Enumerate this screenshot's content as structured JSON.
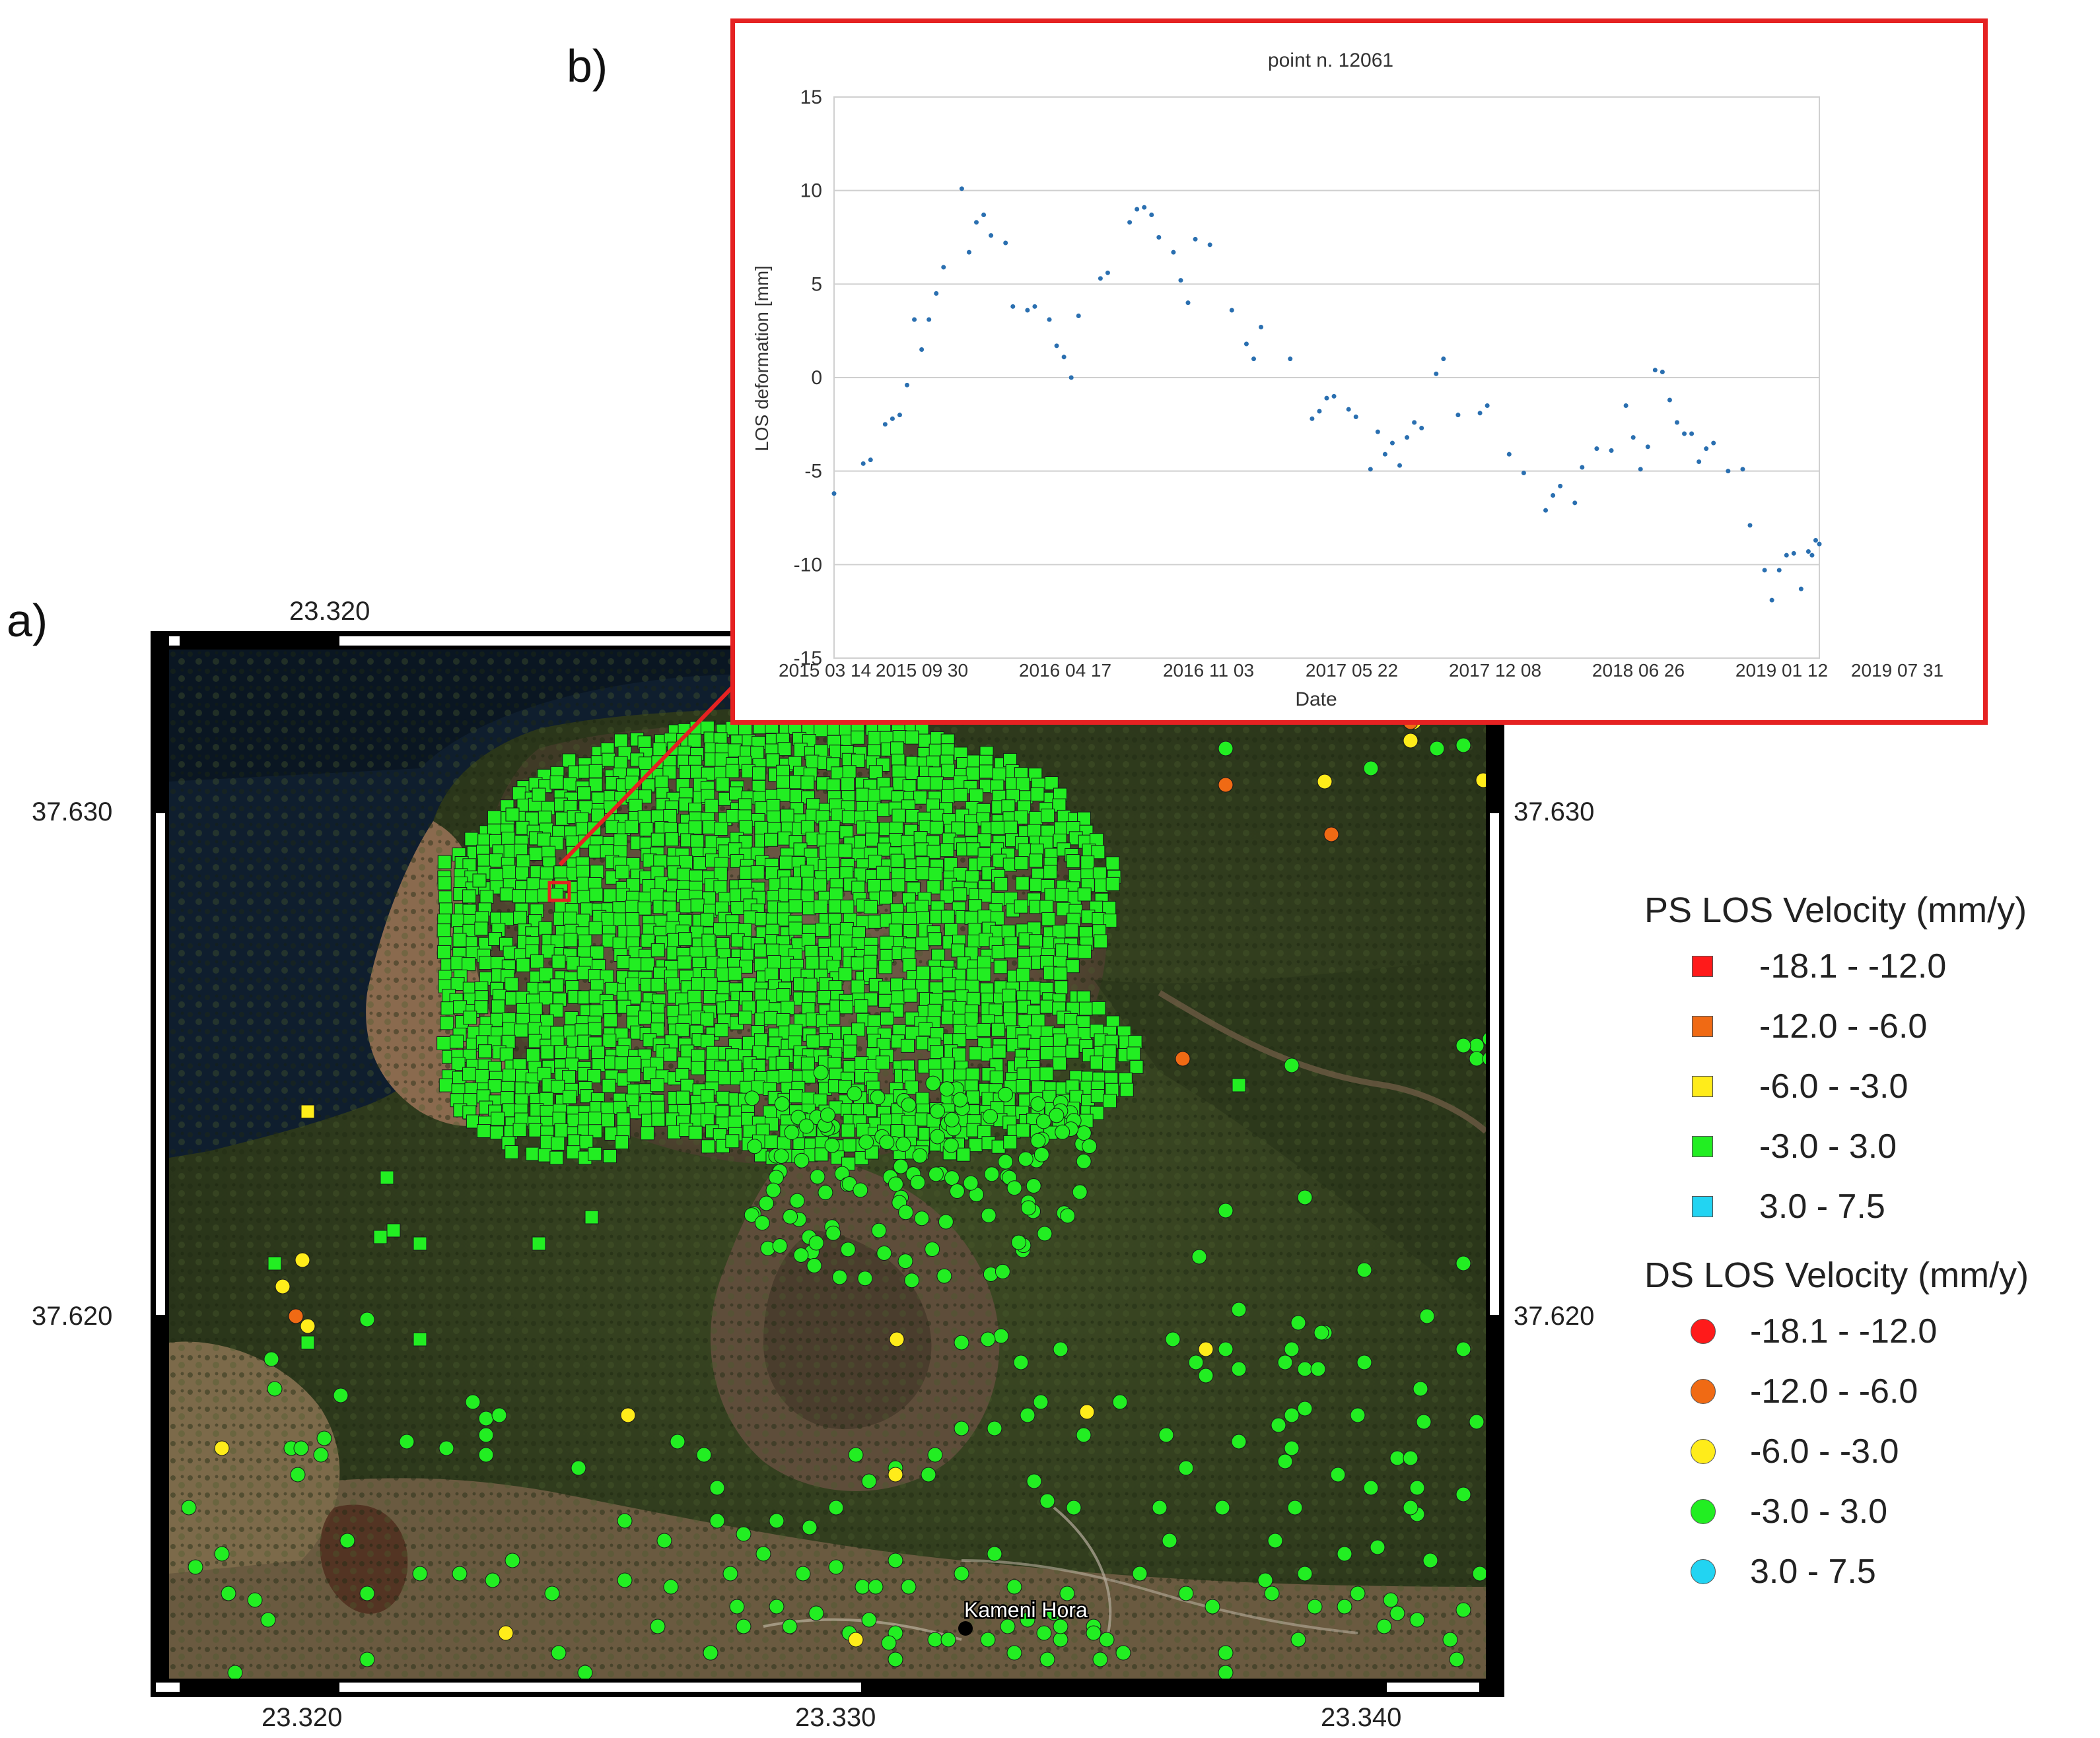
{
  "panels": {
    "a": "a)",
    "b": "b)"
  },
  "map": {
    "lon_ticks": [
      "23.320",
      "23.330",
      "23.340"
    ],
    "lat_ticks": [
      "37.630",
      "37.620"
    ],
    "place_label": "Kameni Hora",
    "highlight_box": "selected-point"
  },
  "colors": {
    "class_-18.1_-12.0": "#ff1a1a",
    "class_-12.0_-6.0": "#f06a14",
    "class_-6.0_-3.0": "#ffec1a",
    "class_-3.0_3.0": "#22ee22",
    "class_3.0_7.5": "#22d4f2",
    "inset_border": "#e52222",
    "point_color": "#2a6fb0"
  },
  "legend": {
    "ps_title": "PS LOS Velocity (mm/y)",
    "ds_title": "DS LOS Velocity (mm/y)",
    "classes": [
      {
        "label": "-18.1 - -12.0",
        "color": "#ff1a1a"
      },
      {
        "label": "-12.0 - -6.0",
        "color": "#f06a14"
      },
      {
        "label": "-6.0 - -3.0",
        "color": "#ffec1a"
      },
      {
        "label": "-3.0 - 3.0",
        "color": "#22ee22"
      },
      {
        "label": "3.0 - 7.5",
        "color": "#22d4f2"
      }
    ]
  },
  "chart_data": {
    "type": "scatter",
    "title": "point n. 12061",
    "xlabel": "Date",
    "ylabel": "LOS deformation [mm]",
    "ylim": [
      -15,
      15
    ],
    "yticks": [
      15,
      10,
      5,
      0,
      -5,
      -10,
      -15
    ],
    "xlim": [
      "2015-03-14",
      "2019-08-20"
    ],
    "xticks": [
      "2015 03 14",
      "2015 09 30",
      "2016 04 17",
      "2016 11 03",
      "2017 05 22",
      "2017 12 08",
      "2018 06 26",
      "2019 01 12",
      "2019 07 31"
    ],
    "grid": "horizontal",
    "points": [
      [
        "2015-03-14",
        -6.2
      ],
      [
        "2015-05-01",
        -4.6
      ],
      [
        "2015-05-13",
        -4.4
      ],
      [
        "2015-06-06",
        -2.5
      ],
      [
        "2015-06-18",
        -2.2
      ],
      [
        "2015-06-30",
        -2.0
      ],
      [
        "2015-07-12",
        -0.4
      ],
      [
        "2015-07-24",
        3.1
      ],
      [
        "2015-08-05",
        1.5
      ],
      [
        "2015-08-17",
        3.1
      ],
      [
        "2015-08-29",
        4.5
      ],
      [
        "2015-09-10",
        5.9
      ],
      [
        "2015-10-10",
        10.1
      ],
      [
        "2015-10-22",
        6.7
      ],
      [
        "2015-11-03",
        8.3
      ],
      [
        "2015-11-15",
        8.7
      ],
      [
        "2015-11-27",
        7.6
      ],
      [
        "2015-12-21",
        7.2
      ],
      [
        "2016-01-02",
        3.8
      ],
      [
        "2016-01-26",
        3.6
      ],
      [
        "2016-02-07",
        3.8
      ],
      [
        "2016-03-02",
        3.1
      ],
      [
        "2016-03-14",
        1.7
      ],
      [
        "2016-03-26",
        1.1
      ],
      [
        "2016-04-07",
        0.0
      ],
      [
        "2016-04-19",
        3.3
      ],
      [
        "2016-05-25",
        5.3
      ],
      [
        "2016-06-06",
        5.6
      ],
      [
        "2016-07-12",
        8.3
      ],
      [
        "2016-07-24",
        9.0
      ],
      [
        "2016-08-05",
        9.1
      ],
      [
        "2016-08-17",
        8.7
      ],
      [
        "2016-08-29",
        7.5
      ],
      [
        "2016-09-22",
        6.7
      ],
      [
        "2016-10-04",
        5.2
      ],
      [
        "2016-10-16",
        4.0
      ],
      [
        "2016-10-28",
        7.4
      ],
      [
        "2016-11-21",
        7.1
      ],
      [
        "2016-12-27",
        3.6
      ],
      [
        "2017-01-20",
        1.8
      ],
      [
        "2017-02-01",
        1.0
      ],
      [
        "2017-02-13",
        2.7
      ],
      [
        "2017-04-02",
        1.0
      ],
      [
        "2017-05-08",
        -2.2
      ],
      [
        "2017-05-20",
        -1.8
      ],
      [
        "2017-06-01",
        -1.1
      ],
      [
        "2017-06-13",
        -1.0
      ],
      [
        "2017-07-07",
        -1.7
      ],
      [
        "2017-07-19",
        -2.1
      ],
      [
        "2017-08-12",
        -4.9
      ],
      [
        "2017-08-24",
        -2.9
      ],
      [
        "2017-09-05",
        -4.1
      ],
      [
        "2017-09-17",
        -3.5
      ],
      [
        "2017-09-29",
        -4.7
      ],
      [
        "2017-10-11",
        -3.2
      ],
      [
        "2017-10-23",
        -2.4
      ],
      [
        "2017-11-04",
        -2.7
      ],
      [
        "2017-11-28",
        0.2
      ],
      [
        "2017-12-10",
        1.0
      ],
      [
        "2018-01-03",
        -2.0
      ],
      [
        "2018-02-08",
        -1.9
      ],
      [
        "2018-02-20",
        -1.5
      ],
      [
        "2018-03-28",
        -4.1
      ],
      [
        "2018-04-21",
        -5.1
      ],
      [
        "2018-05-27",
        -7.1
      ],
      [
        "2018-06-08",
        -6.3
      ],
      [
        "2018-06-20",
        -5.8
      ],
      [
        "2018-07-14",
        -6.7
      ],
      [
        "2018-07-26",
        -4.8
      ],
      [
        "2018-08-19",
        -3.8
      ],
      [
        "2018-09-12",
        -3.9
      ],
      [
        "2018-10-06",
        -1.5
      ],
      [
        "2018-10-18",
        -3.2
      ],
      [
        "2018-10-30",
        -4.9
      ],
      [
        "2018-11-11",
        -3.7
      ],
      [
        "2018-11-23",
        0.4
      ],
      [
        "2018-12-05",
        0.3
      ],
      [
        "2018-12-17",
        -1.2
      ],
      [
        "2018-12-29",
        -2.4
      ],
      [
        "2019-01-10",
        -3.0
      ],
      [
        "2019-01-22",
        -3.0
      ],
      [
        "2019-02-03",
        -4.5
      ],
      [
        "2019-02-15",
        -3.8
      ],
      [
        "2019-02-27",
        -3.5
      ],
      [
        "2019-03-23",
        -5.0
      ],
      [
        "2019-04-16",
        -4.9
      ],
      [
        "2019-04-28",
        -7.9
      ],
      [
        "2019-05-22",
        -10.3
      ],
      [
        "2019-06-03",
        -11.9
      ],
      [
        "2019-06-15",
        -10.3
      ],
      [
        "2019-06-27",
        -9.5
      ],
      [
        "2019-07-09",
        -9.4
      ],
      [
        "2019-07-21",
        -11.3
      ],
      [
        "2019-08-02",
        -9.3
      ],
      [
        "2019-08-08",
        -9.5
      ],
      [
        "2019-08-14",
        -8.7
      ],
      [
        "2019-08-20",
        -8.9
      ]
    ]
  }
}
